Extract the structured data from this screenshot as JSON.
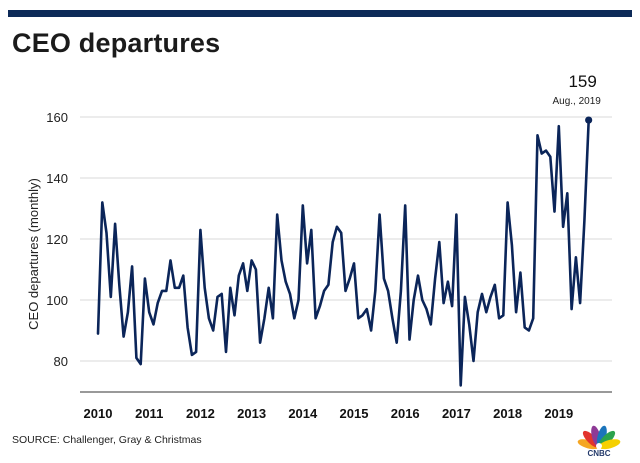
{
  "header": {
    "title": "CEO departures"
  },
  "footer": {
    "source": "SOURCE: Challenger, Gray & Christmas",
    "logo_text": "CNBC"
  },
  "colors": {
    "line": "#0b2559",
    "top_bar": "#0d2a58",
    "grid": "#d9d9d9"
  },
  "chart_data": {
    "type": "line",
    "title": "CEO departures",
    "xlabel": "",
    "ylabel": "CEO departures (monthly)",
    "ylim": [
      70,
      170
    ],
    "yticks": [
      80,
      100,
      120,
      140,
      160
    ],
    "grid": true,
    "x_tick_labels": [
      "2010",
      "2011",
      "2012",
      "2013",
      "2014",
      "2015",
      "2016",
      "2017",
      "2018",
      "2019"
    ],
    "start": "2010-01",
    "series": [
      {
        "name": "CEO departures",
        "values": [
          89,
          132,
          122,
          101,
          125,
          105,
          88,
          96,
          111,
          81,
          79,
          107,
          96,
          92,
          99,
          103,
          103,
          113,
          104,
          104,
          108,
          91,
          82,
          83,
          123,
          104,
          94,
          90,
          101,
          102,
          83,
          104,
          95,
          108,
          112,
          103,
          113,
          110,
          86,
          94,
          104,
          94,
          128,
          113,
          106,
          102,
          94,
          100,
          131,
          112,
          123,
          94,
          98,
          103,
          105,
          119,
          124,
          122,
          103,
          107,
          112,
          94,
          95,
          97,
          90,
          103,
          128,
          107,
          103,
          94,
          86,
          103,
          131,
          87,
          100,
          108,
          100,
          97,
          92,
          107,
          119,
          99,
          106,
          98,
          128,
          72,
          101,
          92,
          80,
          96,
          102,
          96,
          101,
          105,
          94,
          95,
          132,
          118,
          96,
          109,
          91,
          90,
          94,
          154,
          148,
          149,
          147,
          129,
          157,
          124,
          135,
          97,
          114,
          99,
          126,
          159
        ]
      }
    ],
    "annotation": {
      "value_label": "159",
      "date_label": "Aug., 2019"
    }
  }
}
